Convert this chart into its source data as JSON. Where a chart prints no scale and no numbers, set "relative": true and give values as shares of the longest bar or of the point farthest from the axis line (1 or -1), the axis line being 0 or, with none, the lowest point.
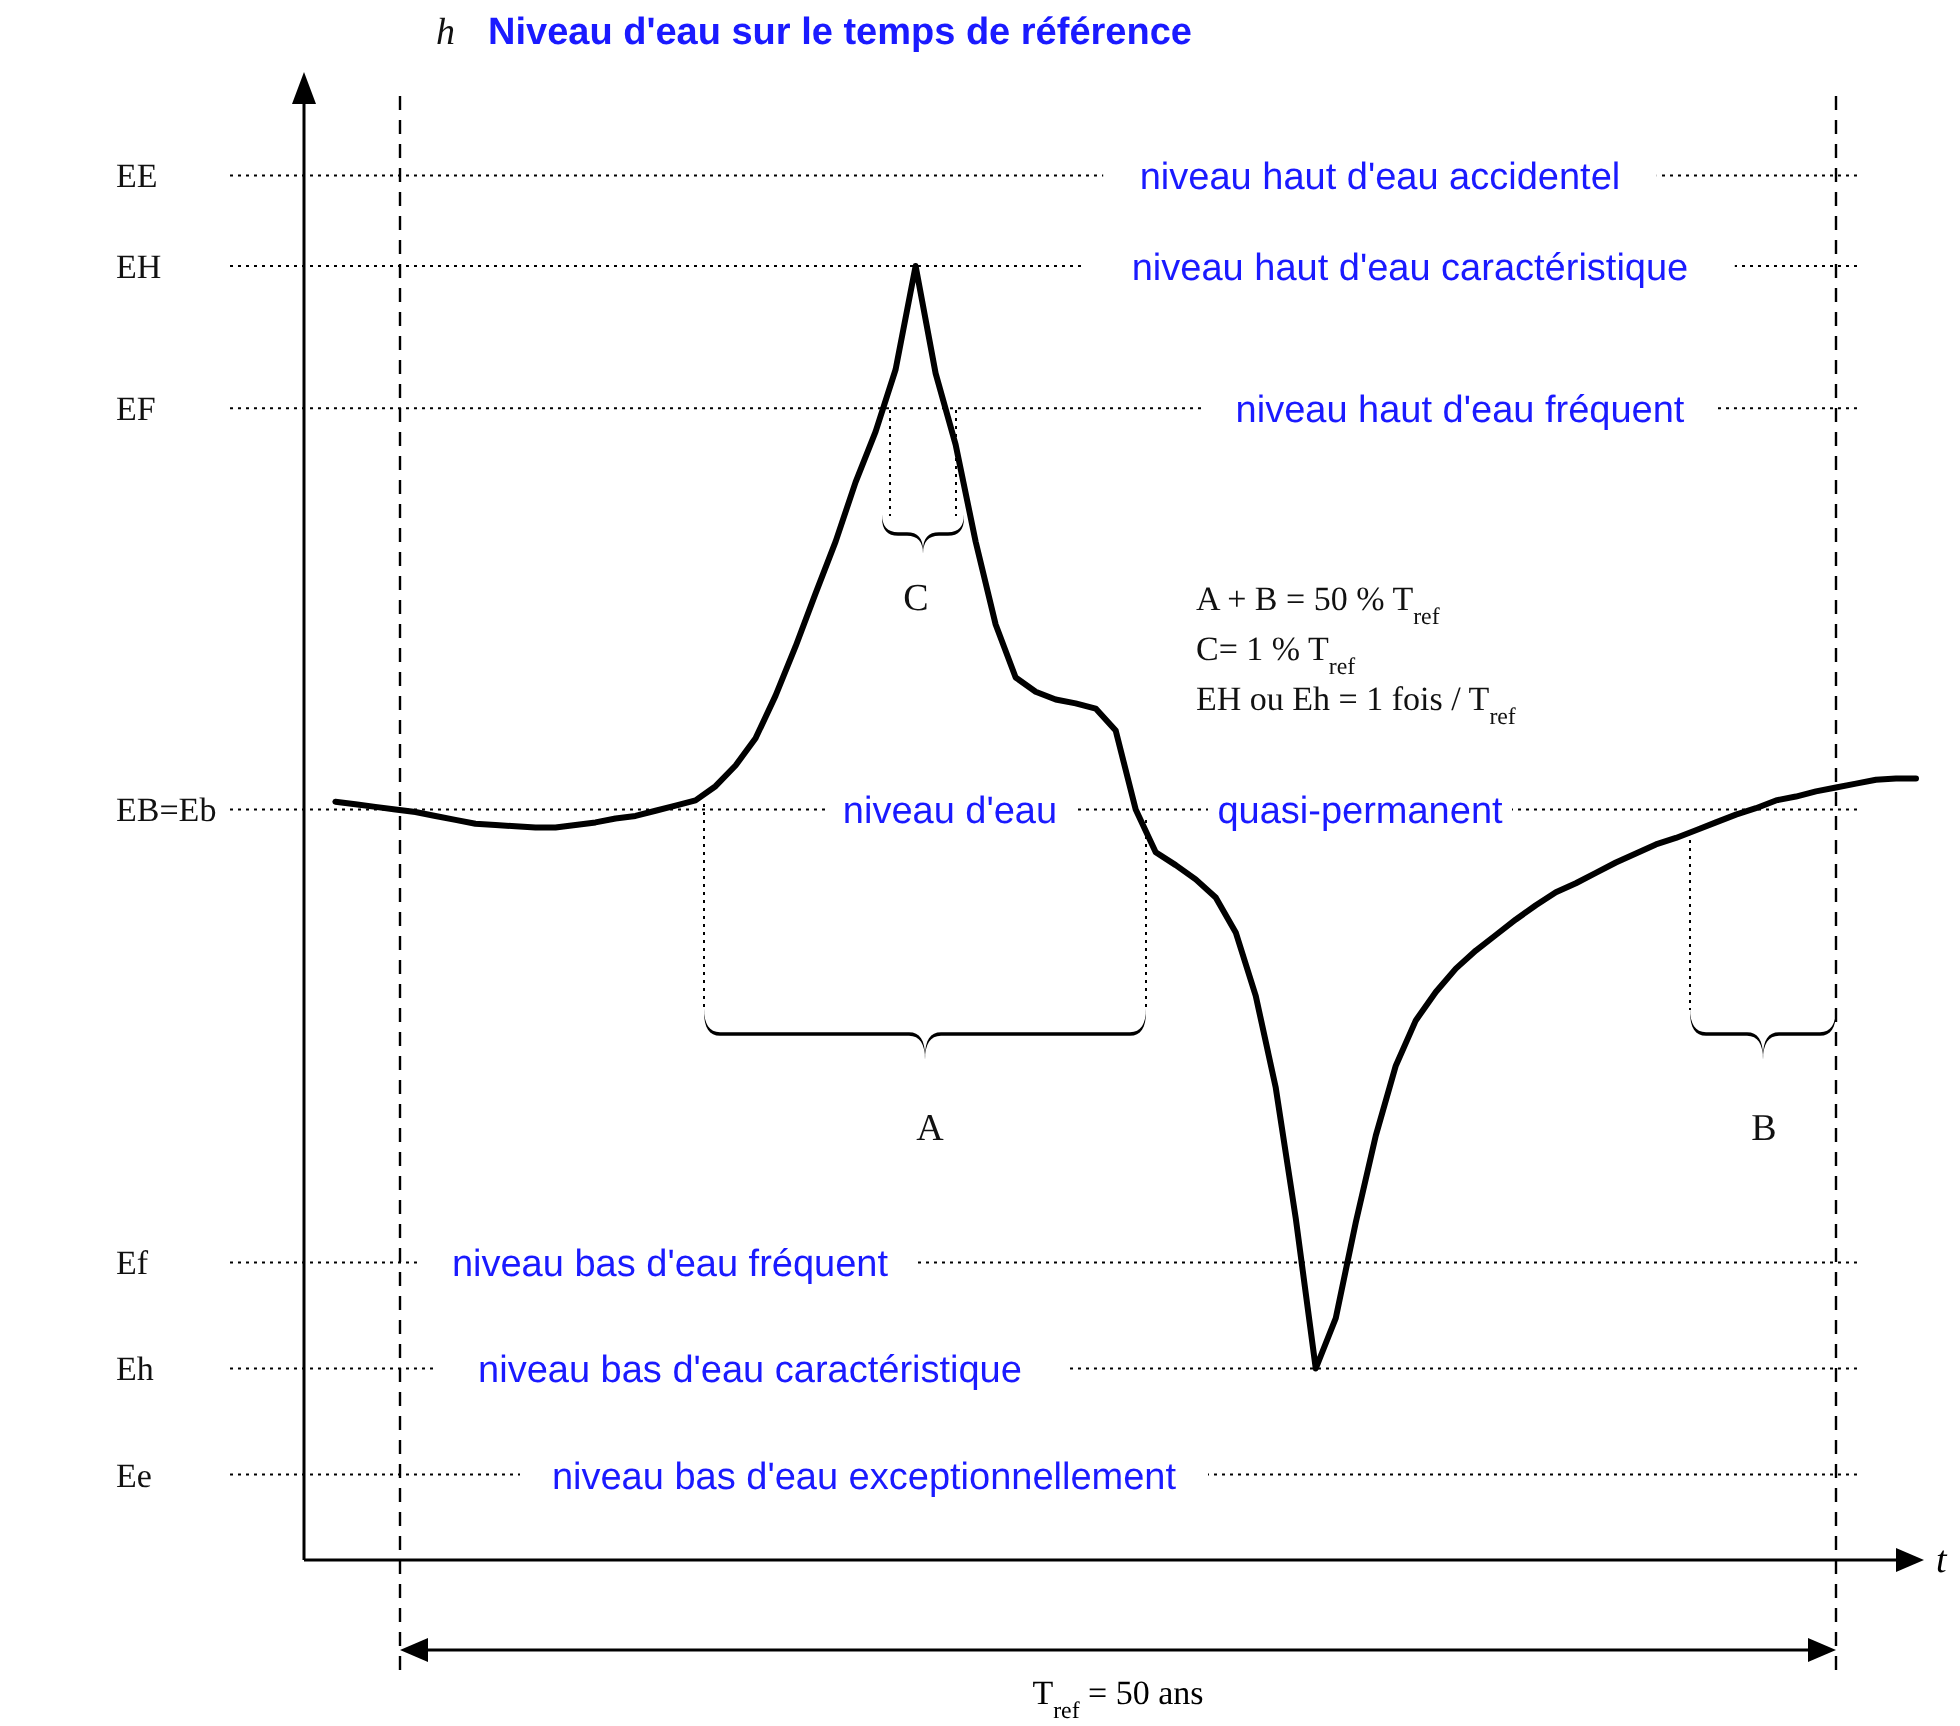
{
  "chart_data": {
    "type": "line",
    "title": "Niveau d'eau sur le temps de référence",
    "xlabel": "t",
    "relative": true,
    "categories": [
      null,
      null,
      null,
      null,
      null,
      null,
      null,
      null,
      null,
      null,
      null,
      null,
      null,
      null,
      null,
      null,
      null,
      null,
      null,
      null,
      null,
      null,
      null,
      null,
      null,
      null,
      null,
      null,
      null,
      null,
      null,
      null,
      null,
      null,
      null,
      null,
      null,
      null,
      null,
      null,
      null,
      null,
      null,
      null,
      null,
      null,
      null,
      null,
      null,
      null,
      null,
      null,
      null,
      null,
      null,
      null,
      null,
      null,
      null,
      null,
      null,
      null,
      null,
      null,
      null,
      null,
      null,
      null,
      null,
      null,
      null,
      null,
      null,
      null,
      null,
      null,
      null,
      null,
      null,
      null
    ],
    "series": [
      {
        "color": "#000000",
        "values": [
          0.586,
          0.584,
          0.582,
          0.58,
          0.578,
          0.575,
          0.572,
          0.569,
          0.568,
          0.567,
          0.566,
          0.566,
          0.568,
          0.57,
          0.573,
          0.575,
          0.579,
          0.583,
          0.587,
          0.598,
          0.614,
          0.635,
          0.668,
          0.706,
          0.747,
          0.787,
          0.833,
          0.872,
          0.92,
          1,
          0.917,
          0.862,
          0.787,
          0.723,
          0.682,
          0.671,
          0.665,
          0.662,
          0.658,
          0.641,
          0.58,
          0.547,
          0.537,
          0.526,
          0.512,
          0.485,
          0.436,
          0.365,
          0.264,
          0.148,
          0.187,
          0.261,
          0.328,
          0.382,
          0.417,
          0.439,
          0.457,
          0.471,
          0.483,
          0.495,
          0.506,
          0.516,
          0.523,
          0.531,
          0.539,
          0.546,
          0.553,
          0.558,
          0.564,
          0.57,
          0.576,
          0.581,
          0.587,
          0.59,
          0.594,
          0.597,
          0.6,
          0.603,
          0.604,
          0.604
        ]
      }
    ],
    "ref_lines": [
      {
        "axis": "y",
        "value": 1.07,
        "label": "EE",
        "line_style": "dotted",
        "color": "#000000"
      },
      {
        "axis": "y",
        "value": 1,
        "label": "EH",
        "line_style": "dotted",
        "color": "#000000"
      },
      {
        "axis": "y",
        "value": 0.89,
        "label": "EF",
        "line_style": "dotted",
        "color": "#000000"
      },
      {
        "axis": "y",
        "value": 0.58,
        "label": "EB=Eb",
        "line_style": "dotted",
        "color": "#000000"
      },
      {
        "axis": "y",
        "value": 0.23,
        "label": "Ef",
        "line_style": "dotted",
        "color": "#000000"
      },
      {
        "axis": "y",
        "value": 0.148,
        "label": "Eh",
        "line_style": "dotted",
        "color": "#000000"
      },
      {
        "axis": "y",
        "value": 0.066,
        "label": "Ee",
        "line_style": "dotted",
        "color": "#000000"
      }
    ],
    "annotations": [
      {
        "text": "niveau haut d'eau accidentel",
        "y": 1.07
      },
      {
        "text": "niveau haut d'eau caractéristique",
        "y": 1
      },
      {
        "text": "niveau haut d'eau fréquent",
        "y": 0.89
      },
      {
        "text": "niveau d'eau",
        "y": 0.58
      },
      {
        "text": "quasi-permanent",
        "y": 0.58
      },
      {
        "text": "niveau bas d'eau fréquent",
        "y": 0.23
      },
      {
        "text": "niveau bas d'eau caractéristique",
        "y": 0.148
      },
      {
        "text": "niveau bas d'eau exceptionnellement",
        "y": 0.066
      },
      "C",
      "A",
      "B",
      "A + B = 50 % T$_{ref}$",
      "C= 1 % T$_{ref}$",
      "EH ou Eh = 1 fois / T$_{ref}$",
      "h",
      "T$_{ref}$ = 50 ans"
    ]
  }
}
